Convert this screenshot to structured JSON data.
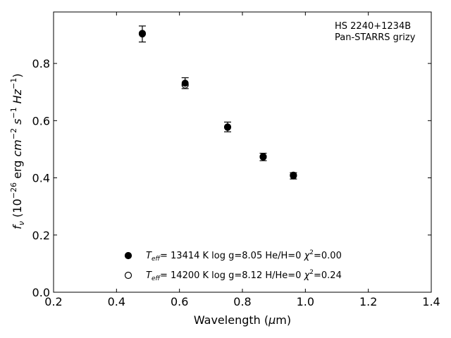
{
  "chart_data": {
    "type": "scatter",
    "title": "",
    "xlabel": "Wavelength (μm)",
    "ylabel": "f_ν (10^-26 erg cm^-2 s^-1 Hz^-1)",
    "xlim": [
      0.2,
      1.4
    ],
    "ylim": [
      0.0,
      0.98
    ],
    "x_ticks": [
      0.2,
      0.4,
      0.6,
      0.8,
      1.0,
      1.2,
      1.4
    ],
    "y_ticks": [
      0.0,
      0.2,
      0.4,
      0.6,
      0.8
    ],
    "x_tick_labels": [
      "0.2",
      "0.4",
      "0.6",
      "0.8",
      "1.0",
      "1.2",
      "1.4"
    ],
    "y_tick_labels": [
      "0.0",
      "0.2",
      "0.4",
      "0.6",
      "0.8"
    ],
    "grid": false,
    "legend_position": "bottom-center",
    "annotation": [
      "HS 2240+1234B",
      "Pan-STARRS grizy"
    ],
    "observed": {
      "x": [
        0.482,
        0.618,
        0.753,
        0.866,
        0.962
      ],
      "y": [
        0.903,
        0.731,
        0.578,
        0.473,
        0.407
      ],
      "yerr": [
        0.028,
        0.019,
        0.017,
        0.013,
        0.011
      ]
    },
    "series": [
      {
        "name": "Teff= 13414 K  log g=8.05  He/H=0  χ2=0.00",
        "marker": "filled-circle",
        "x": [
          0.482,
          0.618,
          0.753,
          0.866,
          0.962
        ],
        "y": [
          0.903,
          0.731,
          0.578,
          0.473,
          0.407
        ]
      },
      {
        "name": "Teff= 14200 K  log g=8.12  H/He=0  χ2=0.24",
        "marker": "open-circle",
        "x": [
          0.482,
          0.618,
          0.753,
          0.866,
          0.962
        ],
        "y": [
          0.905,
          0.725,
          0.577,
          0.474,
          0.409
        ]
      }
    ],
    "legend": [
      {
        "teff_label": "T",
        "teff_sub": "eff",
        "rest": "= 13414 K  log g=8.05  He/H=0  ",
        "chi": "χ",
        "chi_sup": "2",
        "chi_val": "=0.00"
      },
      {
        "teff_label": "T",
        "teff_sub": "eff",
        "rest": "= 14200 K  log g=8.12  H/He=0  ",
        "chi": "χ",
        "chi_sup": "2",
        "chi_val": "=0.24"
      }
    ],
    "colors": {
      "marker": "#000000",
      "background": "#ffffff"
    }
  }
}
